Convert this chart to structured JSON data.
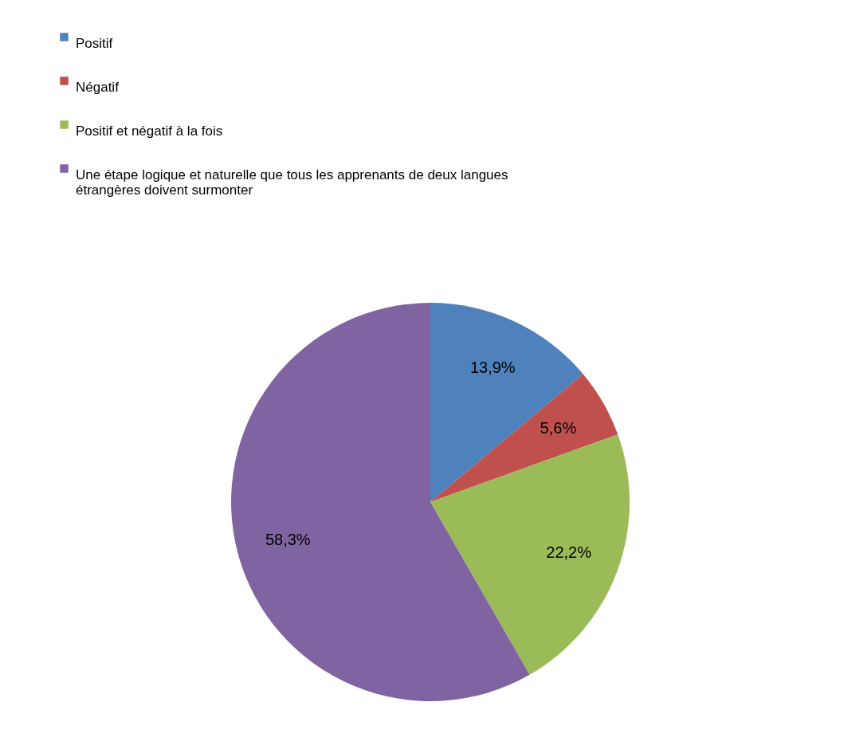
{
  "chart_data": {
    "type": "pie",
    "categories": [
      "Positif",
      "Négatif",
      "Positif et négatif à la fois",
      "Une étape logique et naturelle que tous les apprenants de deux langues étrangères doivent surmonter"
    ],
    "values": [
      13.9,
      5.6,
      22.2,
      58.3
    ],
    "colors": [
      "#4f81bd",
      "#c0504d",
      "#9bbb59",
      "#8064a2"
    ],
    "value_labels": [
      "13,9%",
      "5,6%",
      "22,2%",
      "58,3%"
    ],
    "legend": "top left"
  }
}
